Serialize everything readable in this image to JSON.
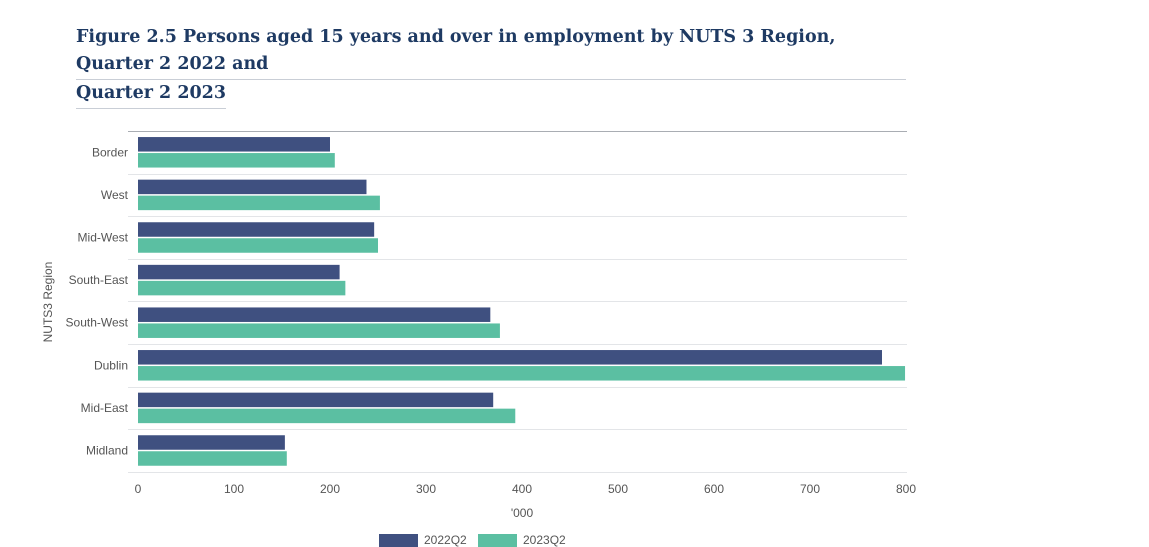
{
  "figure": {
    "title_line_1": "Figure 2.5 Persons aged 15 years and over in employment by NUTS 3 Region, Quarter 2 2022 and",
    "title_line_2": "Quarter 2 2023"
  },
  "chart_data": {
    "type": "bar",
    "orientation": "horizontal",
    "categories": [
      "Border",
      "West",
      "Mid-West",
      "South-East",
      "South-West",
      "Dublin",
      "Mid-East",
      "Midland"
    ],
    "series": [
      {
        "name": "2022Q2",
        "color": "#3f5080",
        "values": [
          200,
          238,
          246,
          210,
          367,
          775,
          370,
          153
        ]
      },
      {
        "name": "2023Q2",
        "color": "#5bbfa2",
        "values": [
          205,
          252,
          250,
          216,
          377,
          799,
          393,
          155
        ]
      }
    ],
    "xlabel": "'000",
    "ylabel": "NUTS3 Region",
    "xlim": [
      0,
      800
    ],
    "xticks": [
      "0",
      "100",
      "200",
      "300",
      "400",
      "500",
      "600",
      "700",
      "800"
    ],
    "grid": true,
    "legend_position": "bottom"
  }
}
